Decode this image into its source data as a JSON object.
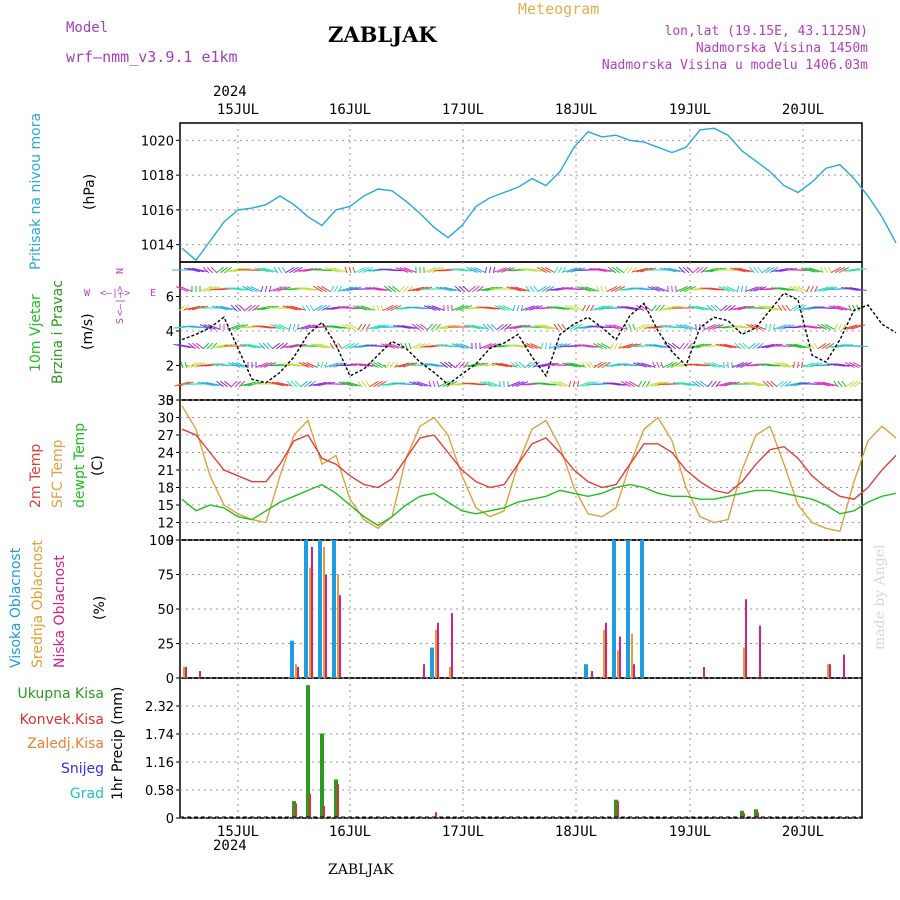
{
  "header": {
    "model_label": "Model",
    "model_name": "wrf—nmm_v3.9.1  e1km",
    "station": "ZABLJAK",
    "product": "Meteogram",
    "coords": "lon,lat (19.15E, 43.1125N)",
    "elevation": "Nadmorska Visina 1450m",
    "model_elevation": "Nadmorska Visina u modelu 1406.03m",
    "footer_station": "ZABLJAK",
    "watermark": "made by Angel",
    "year_top": "2024",
    "year_bottom": "2024"
  },
  "colors": {
    "pressure": "#2aa7e0",
    "temp2m": "#e0403a",
    "sfc_temp": "#e0a040",
    "dewpoint": "#20c020",
    "cloud_high": "#1e9de0",
    "cloud_mid": "#e0a030",
    "cloud_low": "#d0208a",
    "precip_total": "#2a9a20",
    "precip_conv": "#e03030",
    "precip_frozen": "#f08030",
    "snow": "#3030e0",
    "hail": "#20c0c0",
    "wind_label": "#20c020",
    "wind_label2": "#2a9a20",
    "wind_compass": "#c040c0"
  },
  "days": [
    "15JUL",
    "16JUL",
    "17JUL",
    "18JUL",
    "19JUL",
    "20JUL"
  ],
  "panels": {
    "pressure": {
      "label": "Pritisak na nivou mora",
      "unit": "(hPa)"
    },
    "wind": {
      "label1": "10m Vjetar",
      "label2": "Brzina i Pravac",
      "unit": "(m/s)",
      "compass_w": "W",
      "compass_e": "E",
      "compass_arrows": "<—|—>",
      "compass_n": "N",
      "compass_s": "S",
      "compass_v1": "<—|—>"
    },
    "temp": {
      "label_2m": "2m Temp",
      "label_sfc": "SFC Temp",
      "label_dew": "dewpt Temp",
      "unit": "(C)"
    },
    "cloud": {
      "label_high": "Visoka Oblacnost",
      "label_mid": "Srednja Oblacnost",
      "label_low": "Niska Oblacnost",
      "unit": "(%)"
    },
    "precip": {
      "total": "Ukupna Kisa",
      "conv": "Konvek.Kisa",
      "frozen": "Zaledj.Kisa",
      "snow": "Snijeg",
      "hail": "Grad",
      "unit": "1hr Precip (mm)"
    }
  },
  "chart_data": [
    {
      "type": "line",
      "panel": "pressure",
      "ylim": [
        1013,
        1021
      ],
      "yticks": [
        1014,
        1016,
        1018,
        1020
      ],
      "x_start": "2024-07-14 12:00",
      "step_hours": 3,
      "series": [
        {
          "values": [
            1013.8,
            1013.1,
            1014.2,
            1015.3,
            1016.0,
            1016.1,
            1016.3,
            1016.8,
            1016.3,
            1015.6,
            1015.1,
            1016.0,
            1016.2,
            1016.8,
            1017.2,
            1017.1,
            1016.5,
            1015.8,
            1015.0,
            1014.4,
            1015.1,
            1016.2,
            1016.7,
            1017.0,
            1017.3,
            1017.8,
            1017.4,
            1018.2,
            1019.6,
            1020.5,
            1020.2,
            1020.3,
            1020.0,
            1019.9,
            1019.6,
            1019.3,
            1019.6,
            1020.6,
            1020.7,
            1020.3,
            1019.4,
            1018.8,
            1018.2,
            1017.4,
            1017.0,
            1017.6,
            1018.4,
            1018.6,
            1017.8,
            1016.8,
            1015.6,
            1014.1
          ]
        }
      ]
    },
    {
      "type": "line",
      "panel": "wind",
      "ylim": [
        0,
        8
      ],
      "yticks": [
        0,
        2,
        4,
        6
      ],
      "x_start": "2024-07-14 12:00",
      "step_hours": 3,
      "series": [
        {
          "values": [
            3.5,
            3.8,
            4.2,
            4.8,
            3.0,
            1.2,
            1.0,
            1.6,
            2.5,
            3.8,
            4.5,
            3.2,
            1.4,
            1.8,
            2.6,
            3.4,
            3.0,
            2.2,
            1.6,
            0.9,
            1.5,
            2.1,
            3.0,
            3.3,
            3.8,
            2.5,
            1.4,
            3.8,
            4.4,
            4.8,
            4.2,
            3.5,
            4.9,
            5.6,
            4.0,
            2.8,
            2.0,
            4.2,
            4.8,
            4.6,
            3.8,
            4.2,
            5.2,
            6.2,
            5.8,
            2.6,
            2.2,
            3.5,
            5.2,
            5.5,
            4.4,
            3.9
          ]
        }
      ]
    },
    {
      "type": "line",
      "panel": "temp",
      "ylim": [
        9,
        33
      ],
      "yticks": [
        9,
        12,
        15,
        18,
        21,
        24,
        27,
        30,
        33
      ],
      "x_start": "2024-07-14 12:00",
      "step_hours": 3,
      "series": [
        {
          "values": [
            28.0,
            27.0,
            24.0,
            21.0,
            20.0,
            19.0,
            19.0,
            22.0,
            26.0,
            27.0,
            23.0,
            22.0,
            20.0,
            18.5,
            18.0,
            19.5,
            23.0,
            26.5,
            27.0,
            24.0,
            21.0,
            19.0,
            18.0,
            18.5,
            22.0,
            25.5,
            26.5,
            24.0,
            21.0,
            19.0,
            18.0,
            18.5,
            22.0,
            25.5,
            25.5,
            24.0,
            21.0,
            19.0,
            17.5,
            17.0,
            19.0,
            22.0,
            24.5,
            25.0,
            23.0,
            20.0,
            18.0,
            16.5,
            16.0,
            18.0,
            21.0,
            23.5
          ]
        },
        {
          "values": [
            32.0,
            28.0,
            20.0,
            15.0,
            13.5,
            12.5,
            12.0,
            20.0,
            27.0,
            29.5,
            22.0,
            23.5,
            16.0,
            12.5,
            11.0,
            13.0,
            23.0,
            28.5,
            30.0,
            27.0,
            20.0,
            14.5,
            13.0,
            14.0,
            22.0,
            28.0,
            29.5,
            25.0,
            18.0,
            13.5,
            13.0,
            14.5,
            22.0,
            28.0,
            30.0,
            26.0,
            18.0,
            13.0,
            12.0,
            12.5,
            21.0,
            27.0,
            28.5,
            22.0,
            15.0,
            12.0,
            11.0,
            10.5,
            19.0,
            26.0,
            28.5,
            26.5
          ]
        },
        {
          "values": [
            16.0,
            14.0,
            15.0,
            14.5,
            13.0,
            12.5,
            14.0,
            15.5,
            16.5,
            17.5,
            18.5,
            17.0,
            15.0,
            13.0,
            11.5,
            13.0,
            15.0,
            16.5,
            17.0,
            15.5,
            14.0,
            13.5,
            14.0,
            14.5,
            15.5,
            16.0,
            16.5,
            17.5,
            17.0,
            16.5,
            17.0,
            18.0,
            18.5,
            18.0,
            17.0,
            16.5,
            16.5,
            16.0,
            16.0,
            16.5,
            17.0,
            17.5,
            17.5,
            17.0,
            16.5,
            16.0,
            15.0,
            13.5,
            14.0,
            15.5,
            16.5,
            17.0
          ]
        }
      ]
    },
    {
      "type": "bar",
      "panel": "cloud",
      "ylim": [
        0,
        100
      ],
      "yticks": [
        0,
        25,
        50,
        75,
        100
      ],
      "x_start": "2024-07-14 12:00",
      "step_hours": 3,
      "series": [
        {
          "values": [
            0,
            0,
            0,
            0,
            0,
            0,
            0,
            0,
            27,
            100,
            100,
            100,
            0,
            0,
            0,
            0,
            0,
            0,
            22,
            0,
            0,
            0,
            0,
            0,
            0,
            0,
            0,
            0,
            0,
            10,
            0,
            100,
            100,
            100,
            0,
            0,
            0,
            0,
            0,
            0,
            0,
            0,
            0,
            0,
            0,
            0,
            0,
            0,
            0,
            0,
            0,
            6
          ]
        },
        {
          "values": [
            8,
            0,
            0,
            0,
            0,
            0,
            0,
            0,
            10,
            80,
            95,
            75,
            0,
            0,
            0,
            0,
            0,
            0,
            35,
            8,
            0,
            0,
            0,
            0,
            0,
            0,
            0,
            0,
            0,
            0,
            35,
            20,
            32,
            0,
            0,
            0,
            0,
            0,
            0,
            0,
            22,
            0,
            0,
            0,
            0,
            0,
            10,
            0,
            0,
            0,
            0,
            0
          ]
        },
        {
          "values": [
            8,
            5,
            0,
            0,
            0,
            0,
            0,
            0,
            8,
            95,
            75,
            60,
            0,
            0,
            0,
            0,
            0,
            10,
            40,
            47,
            0,
            0,
            0,
            0,
            0,
            0,
            0,
            0,
            0,
            5,
            40,
            30,
            10,
            0,
            0,
            0,
            0,
            8,
            0,
            0,
            57,
            38,
            0,
            0,
            0,
            0,
            10,
            17,
            0,
            12,
            0,
            10
          ]
        }
      ]
    },
    {
      "type": "bar",
      "panel": "precip",
      "ylim": [
        0,
        2.9
      ],
      "yticks": [
        0,
        0.58,
        1.16,
        1.74,
        2.32
      ],
      "x_start": "2024-07-14 12:00",
      "step_hours": 3,
      "series": [
        {
          "values": [
            0,
            0,
            0,
            0,
            0,
            0,
            0,
            0,
            0.35,
            2.75,
            1.75,
            0.8,
            0,
            0,
            0,
            0,
            0,
            0,
            0,
            0,
            0,
            0,
            0,
            0,
            0,
            0,
            0,
            0,
            0,
            0,
            0,
            0.38,
            0,
            0,
            0,
            0,
            0,
            0,
            0,
            0,
            0.15,
            0.18,
            0,
            0,
            0,
            0,
            0,
            0,
            0,
            0,
            0,
            0.12
          ]
        },
        {
          "values": [
            0,
            0,
            0,
            0,
            0,
            0,
            0,
            0,
            0.3,
            0.5,
            0.25,
            0.7,
            0,
            0,
            0,
            0,
            0,
            0,
            0.12,
            0,
            0,
            0,
            0,
            0,
            0,
            0,
            0,
            0,
            0,
            0,
            0,
            0.35,
            0,
            0,
            0,
            0,
            0,
            0,
            0,
            0,
            0.1,
            0.12,
            0,
            0,
            0,
            0,
            0,
            0,
            0,
            0,
            0,
            0.1
          ]
        }
      ]
    }
  ]
}
